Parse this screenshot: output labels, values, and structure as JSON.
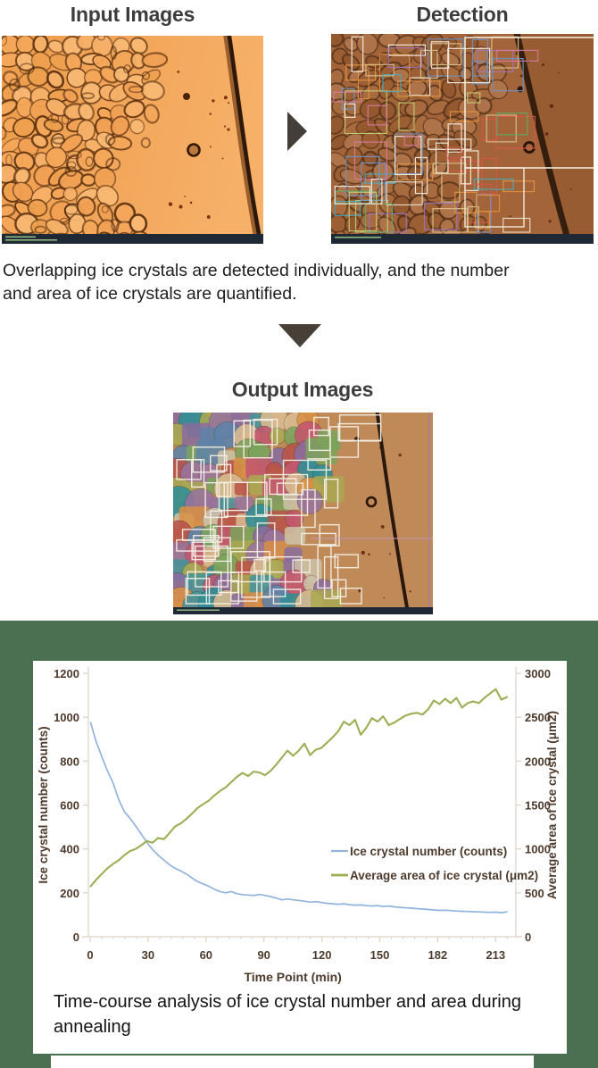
{
  "header": {
    "input_title": "Input Images",
    "detection_title": "Detection",
    "output_title": "Output Images"
  },
  "description": "Overlapping ice crystals are detected individually, and the number and area of ice crystals are quantified.",
  "caption": "Time-course analysis of ice crystal number and area during annealing",
  "colors": {
    "section_bg": "#4a7051",
    "arrow": "#474038",
    "title_text": "#3c3c3c",
    "body_text": "#1e1e1e",
    "chart_text": "#4e3a2c",
    "chart_axis": "#ddd2c4",
    "line_counts": "#92b4dc",
    "line_area": "#9aaf53"
  },
  "figures": {
    "input": {
      "bg1": "#ee9c4c",
      "bg2": "#f6b068",
      "cell_fills": [
        "#f3a65a",
        "#f0a054",
        "#f6b068",
        "#eda04e",
        "#f8b873"
      ],
      "cell_stroke": "#5f3310",
      "diag": "#2c190b",
      "bar": "#1f2935",
      "bar_text": "#8fb97e"
    },
    "detection": {
      "bg": "#a26438",
      "cell_fills": [
        "#9c5f34",
        "#a86b3e",
        "#93572e",
        "#b0744a"
      ],
      "cell_stroke": "#3c2210",
      "box_colors": [
        "#f5f1e8",
        "#f5f1e8",
        "#e8e0cc",
        "#d9c28e",
        "#49a8bc",
        "#6f94c4",
        "#d8564a",
        "#e29240",
        "#9d74bc",
        "#62a86a",
        "#d878a0",
        "#c4cc74"
      ],
      "big_box": "#f2ead8",
      "diag": "#241308",
      "bar": "#1f2935",
      "bar_text": "#8fb97e"
    },
    "output": {
      "bg": "#c08a58",
      "mask_colors": [
        "#c2566e",
        "#2f8e96",
        "#a9a852",
        "#d98f45",
        "#8a6c9e",
        "#d9bc92",
        "#5d82a8",
        "#b85248",
        "#7ba35c",
        "#ccc2a8",
        "#97739d",
        "#43939b"
      ],
      "box_color": "#f4efe6",
      "diag": "#2a180c",
      "bar": "#1f2935",
      "bar_text": "#8fb97e"
    }
  },
  "chart_data": {
    "type": "line",
    "title": "",
    "xlabel": "Time Point (min)",
    "ylabel_left": "Ice crystal number (counts)",
    "ylabel_right": "Average area of ice crystal (μm2)",
    "x_tick_labels": [
      "0",
      "30",
      "60",
      "90",
      "120",
      "150",
      "182",
      "213"
    ],
    "left_ticks": [
      0,
      200,
      400,
      600,
      800,
      1000,
      1200
    ],
    "right_ticks": [
      0,
      500,
      1000,
      1500,
      2000,
      2500,
      3000
    ],
    "left_range": [
      0,
      1200
    ],
    "right_range": [
      0,
      3000
    ],
    "grid": false,
    "legend_position": "inside-right",
    "x": [
      0,
      3,
      6,
      9,
      12,
      15,
      18,
      21,
      24,
      27,
      30,
      33,
      36,
      39,
      42,
      45,
      48,
      51,
      54,
      57,
      60,
      63,
      66,
      69,
      72,
      75,
      78,
      81,
      84,
      87,
      90,
      93,
      96,
      99,
      102,
      105,
      108,
      111,
      114,
      117,
      120,
      123,
      126,
      129,
      132,
      135,
      138,
      141,
      144,
      147,
      150,
      153,
      156,
      159,
      162,
      165,
      168,
      171,
      174,
      177,
      180,
      183,
      186,
      189,
      192,
      195,
      198,
      201,
      204,
      207,
      210,
      213,
      216,
      219,
      222
    ],
    "series": [
      {
        "name": "Ice crystal number (counts)",
        "axis": "left",
        "color": "#92b4dc",
        "width": 1.7,
        "values": [
          975,
          888,
          820,
          756,
          700,
          625,
          570,
          540,
          505,
          468,
          430,
          398,
          372,
          350,
          328,
          312,
          300,
          286,
          268,
          252,
          241,
          230,
          216,
          206,
          200,
          206,
          196,
          192,
          190,
          188,
          193,
          188,
          183,
          176,
          168,
          172,
          168,
          165,
          162,
          158,
          160,
          156,
          152,
          150,
          148,
          150,
          146,
          144,
          145,
          142,
          140,
          142,
          138,
          140,
          136,
          134,
          132,
          130,
          128,
          126,
          124,
          122,
          120,
          121,
          119,
          117,
          116,
          115,
          114,
          113,
          112,
          111,
          112,
          110,
          113
        ]
      },
      {
        "name": "Average area of ice crystal (μm2)",
        "axis": "right",
        "color": "#9aaf53",
        "width": 2.1,
        "values": [
          575,
          650,
          715,
          780,
          830,
          870,
          930,
          975,
          1000,
          1040,
          1090,
          1070,
          1125,
          1110,
          1180,
          1255,
          1290,
          1340,
          1400,
          1465,
          1510,
          1550,
          1610,
          1660,
          1700,
          1760,
          1820,
          1865,
          1830,
          1880,
          1870,
          1840,
          1890,
          1960,
          2040,
          2120,
          2060,
          2120,
          2200,
          2070,
          2130,
          2150,
          2210,
          2270,
          2340,
          2450,
          2410,
          2470,
          2300,
          2380,
          2490,
          2450,
          2510,
          2410,
          2440,
          2480,
          2520,
          2540,
          2550,
          2530,
          2590,
          2690,
          2650,
          2710,
          2660,
          2720,
          2610,
          2660,
          2680,
          2660,
          2720,
          2770,
          2820,
          2700,
          2730
        ]
      }
    ]
  }
}
